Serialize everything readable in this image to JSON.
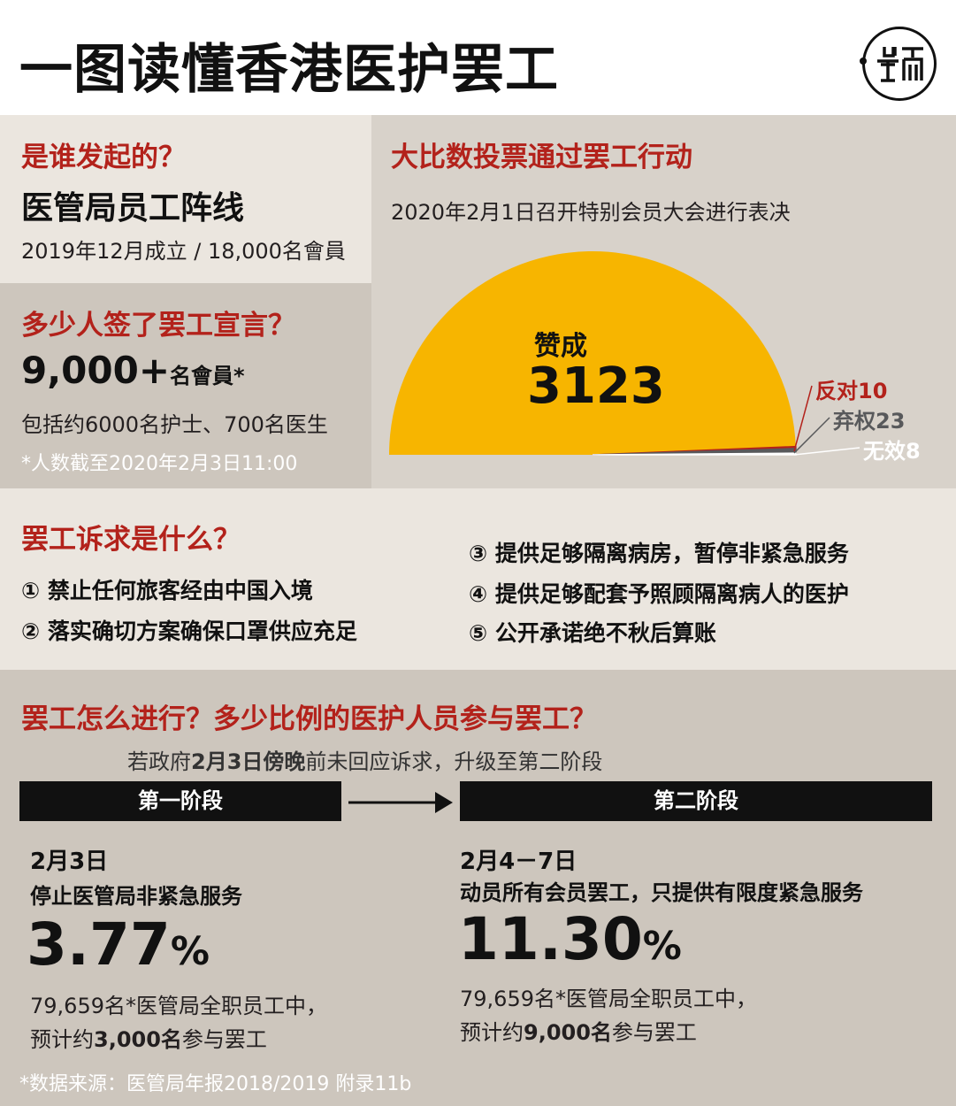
{
  "title": "一图读懂香港医护罢工",
  "logo_text": "端",
  "who": {
    "heading": "是谁发起的？",
    "org_name": "医管局员工阵线",
    "detail": "2019年12月成立 / 18,000名會員"
  },
  "signed": {
    "heading": "多少人签了罢工宣言？",
    "count": "9,000+",
    "count_unit": "名會員*",
    "detail": "包括约6000名护士、700名医生",
    "note": "*人数截至2020年2月3日11:00"
  },
  "vote": {
    "heading": "大比数投票通过罢工行动",
    "subheading": "2020年2月1日召开特别会员大会进行表决",
    "colors": {
      "favor": "#f7b500",
      "against": "#b3221b",
      "abstain": "#58595b",
      "invalid": "#ffffff"
    }
  },
  "chart_data": {
    "type": "pie",
    "title": "",
    "slices": [
      {
        "label": "赞成",
        "value": 3123
      },
      {
        "label": "反对",
        "value": 10
      },
      {
        "label": "弃权",
        "value": 23
      },
      {
        "label": "无效",
        "value": 8
      }
    ],
    "labels": {
      "favor_label": "赞成",
      "favor_value": "3123",
      "against": "反对10",
      "abstain": "弃权23",
      "invalid": "无效8"
    }
  },
  "demands": {
    "heading": "罢工诉求是什么？",
    "items": [
      "① 禁止任何旅客经由中国入境",
      "② 落实确切方案确保口罩供应充足",
      "③ 提供足够隔离病房，暂停非紧急服务",
      "④ 提供足够配套予照顾隔离病人的医护",
      "⑤ 公开承诺绝不秋后算账"
    ]
  },
  "strike": {
    "heading": "罢工怎么进行？多少比例的医护人员参与罢工？",
    "condition_pre": "若政府",
    "condition_bold": "2月3日傍晚",
    "condition_post": "前未回应诉求，升级至第二阶段",
    "stage1": {
      "label": "第一阶段",
      "date": "2月3日",
      "action": "停止医管局非紧急服务",
      "percent": "3.77",
      "percent_sign": "%",
      "line1": "79,659名*医管局全职员工中，",
      "line2_pre": "预计约",
      "line2_bold": "3,000名",
      "line2_post": "参与罢工"
    },
    "stage2": {
      "label": "第二阶段",
      "date": "2月4－7日",
      "action": "动员所有会员罢工，只提供有限度紧急服务",
      "percent": "11.30",
      "percent_sign": "%",
      "line1": "79,659名*医管局全职员工中，",
      "line2_pre": "预计约",
      "line2_bold": "9,000名",
      "line2_post": "参与罢工"
    },
    "source": "*数据来源：医管局年报2018/2019 附录11b"
  }
}
